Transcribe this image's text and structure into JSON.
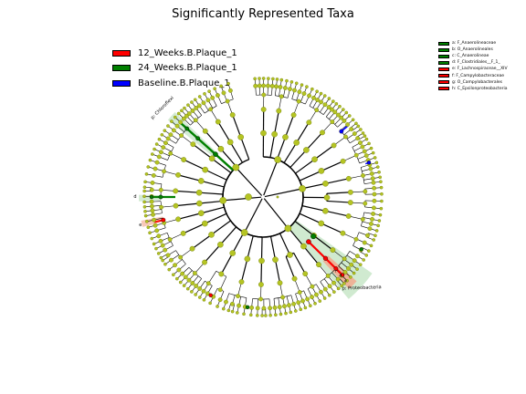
{
  "title": "Significantly Represented Taxa",
  "colors": {
    "red": "#ff0000",
    "green": "#008000",
    "blue": "#0000ff",
    "node": "#b5c423",
    "node_edge": "#6b7a00",
    "branch": "#000000",
    "light_green": "#a9d8a9",
    "light_red": "#f4a58a"
  },
  "group_legend": [
    {
      "label": "12_Weeks.B.Plaque_1",
      "color": "#ff0000"
    },
    {
      "label": "24_Weeks.B.Plaque_1",
      "color": "#008000"
    },
    {
      "label": "Baseline.B.Plaque_1",
      "color": "#0000ff"
    }
  ],
  "taxa_legend": [
    {
      "label": "a: F_Anaerolineaceae",
      "color": "#008000"
    },
    {
      "label": "b: O_Anaerolineales",
      "color": "#008000"
    },
    {
      "label": "c: C_Anaerolineae",
      "color": "#008000"
    },
    {
      "label": "d: F_Clostridiales__F_1_",
      "color": "#008000"
    },
    {
      "label": "e: F_Lachnospiraceae__XIV",
      "color": "#ff0000"
    },
    {
      "label": "f: F_Campylobacteraceae",
      "color": "#ff0000"
    },
    {
      "label": "g: O_Campylobacterales",
      "color": "#ff0000"
    },
    {
      "label": "h: C_Epsilonproteobacteria",
      "color": "#ff0000"
    }
  ],
  "clade_labels": {
    "chloroflexi": "p: Chloroflexi",
    "proteobacteria": "p: Proteobacteria",
    "left_green": "d",
    "left_red": "e",
    "red_letters": [
      "a",
      "b",
      "c"
    ]
  }
}
